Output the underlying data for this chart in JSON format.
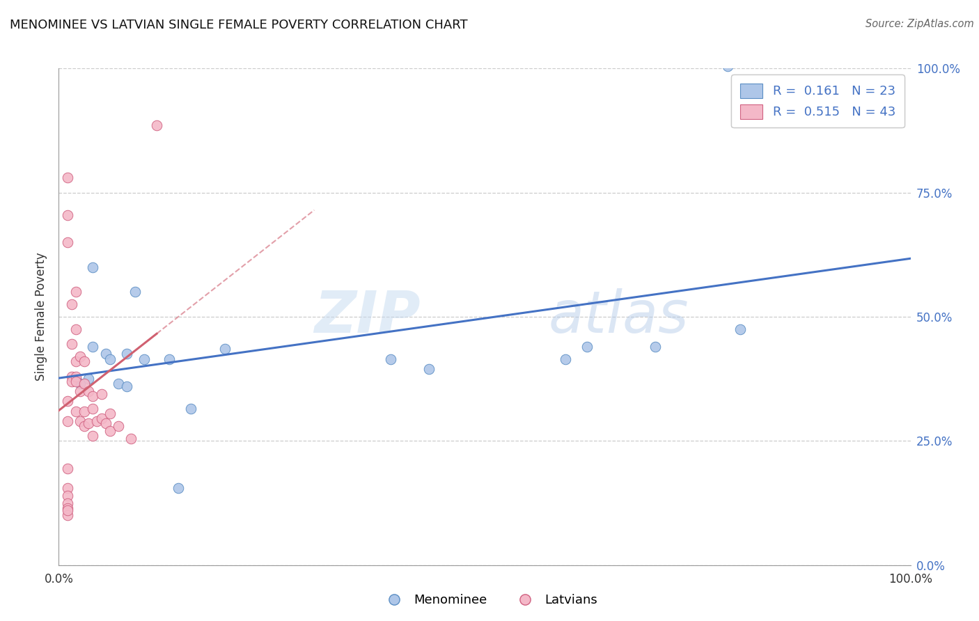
{
  "title": "MENOMINEE VS LATVIAN SINGLE FEMALE POVERTY CORRELATION CHART",
  "source": "Source: ZipAtlas.com",
  "ylabel": "Single Female Poverty",
  "xlim": [
    0,
    1
  ],
  "ylim": [
    0,
    1
  ],
  "ytick_values": [
    0.0,
    0.25,
    0.5,
    0.75,
    1.0
  ],
  "ytick_labels_right": [
    "0.0%",
    "25.0%",
    "50.0%",
    "75.0%",
    "100.0%"
  ],
  "watermark_zip": "ZIP",
  "watermark_atlas": "atlas",
  "legend_r_blue": "0.161",
  "legend_n_blue": "23",
  "legend_r_pink": "0.515",
  "legend_n_pink": "43",
  "blue_fill": "#aec6e8",
  "blue_edge": "#5b8ec4",
  "pink_fill": "#f4b8c8",
  "pink_edge": "#d06080",
  "trend_blue_color": "#4472c4",
  "trend_pink_color": "#d06070",
  "menominee_x": [
    0.785,
    0.62,
    0.595,
    0.7,
    0.8,
    0.04,
    0.055,
    0.08,
    0.1,
    0.02,
    0.025,
    0.035,
    0.04,
    0.06,
    0.07,
    0.08,
    0.09,
    0.13,
    0.14,
    0.155,
    0.195,
    0.39,
    0.435
  ],
  "menominee_y": [
    1.005,
    0.44,
    0.415,
    0.44,
    0.475,
    0.6,
    0.425,
    0.425,
    0.415,
    0.375,
    0.365,
    0.375,
    0.44,
    0.415,
    0.365,
    0.36,
    0.55,
    0.415,
    0.155,
    0.315,
    0.435,
    0.415,
    0.395
  ],
  "latvian_x": [
    0.115,
    0.01,
    0.01,
    0.01,
    0.01,
    0.01,
    0.01,
    0.015,
    0.015,
    0.015,
    0.015,
    0.02,
    0.02,
    0.02,
    0.02,
    0.02,
    0.02,
    0.025,
    0.025,
    0.025,
    0.03,
    0.03,
    0.03,
    0.03,
    0.035,
    0.035,
    0.04,
    0.04,
    0.04,
    0.045,
    0.05,
    0.05,
    0.055,
    0.06,
    0.06,
    0.07,
    0.085,
    0.01,
    0.01,
    0.01,
    0.01,
    0.01,
    0.01
  ],
  "latvian_y": [
    0.885,
    0.78,
    0.705,
    0.65,
    0.33,
    0.29,
    0.195,
    0.525,
    0.445,
    0.38,
    0.37,
    0.55,
    0.475,
    0.41,
    0.38,
    0.37,
    0.31,
    0.42,
    0.35,
    0.29,
    0.41,
    0.365,
    0.31,
    0.28,
    0.35,
    0.285,
    0.34,
    0.315,
    0.26,
    0.29,
    0.345,
    0.295,
    0.285,
    0.305,
    0.27,
    0.28,
    0.255,
    0.155,
    0.14,
    0.125,
    0.115,
    0.1,
    0.11
  ],
  "background_color": "#ffffff",
  "grid_color": "#cccccc"
}
